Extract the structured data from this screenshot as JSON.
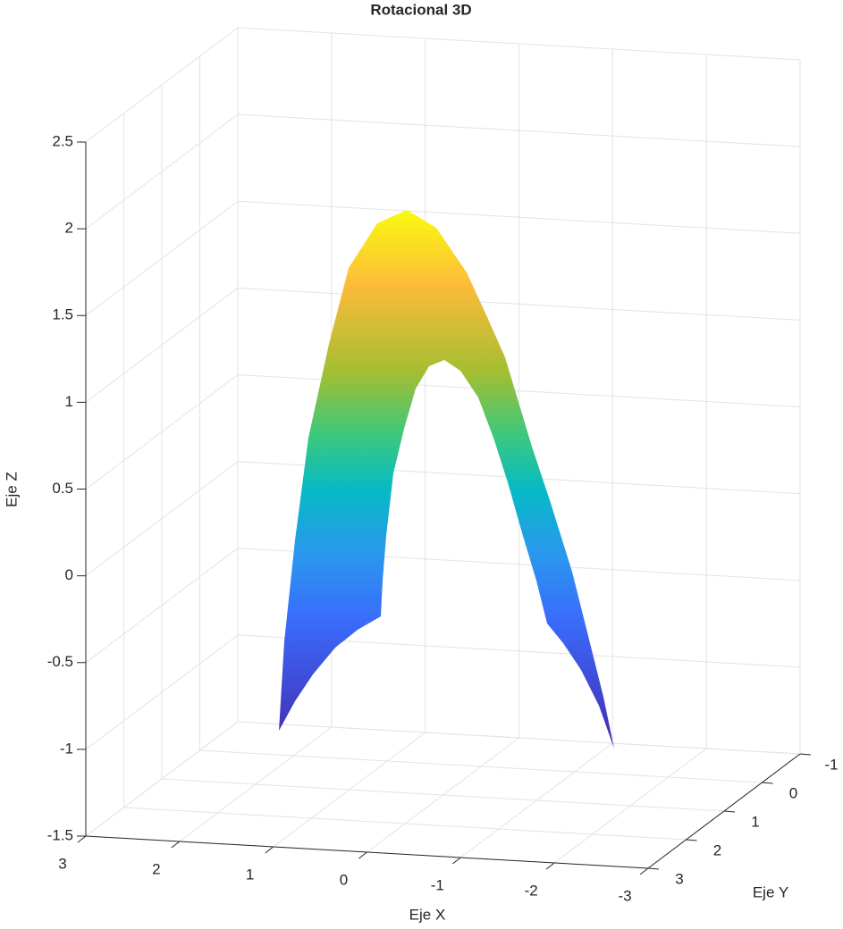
{
  "chart_data": {
    "type": "surface3d",
    "title": "Rotacional 3D",
    "xlabel": "Eje X",
    "ylabel": "Eje Y",
    "zlabel": "Eje Z",
    "xlim": [
      -3,
      3
    ],
    "ylim": [
      -1,
      3
    ],
    "zlim": [
      -1.5,
      2.5
    ],
    "xticks": [
      3,
      2,
      1,
      0,
      -1,
      -2,
      -3
    ],
    "yticks": [
      3,
      2,
      1,
      0,
      -1
    ],
    "zticks": [
      -1.5,
      -1,
      -0.5,
      0,
      0.5,
      1,
      1.5,
      2,
      2.5
    ],
    "grid": true
  }
}
